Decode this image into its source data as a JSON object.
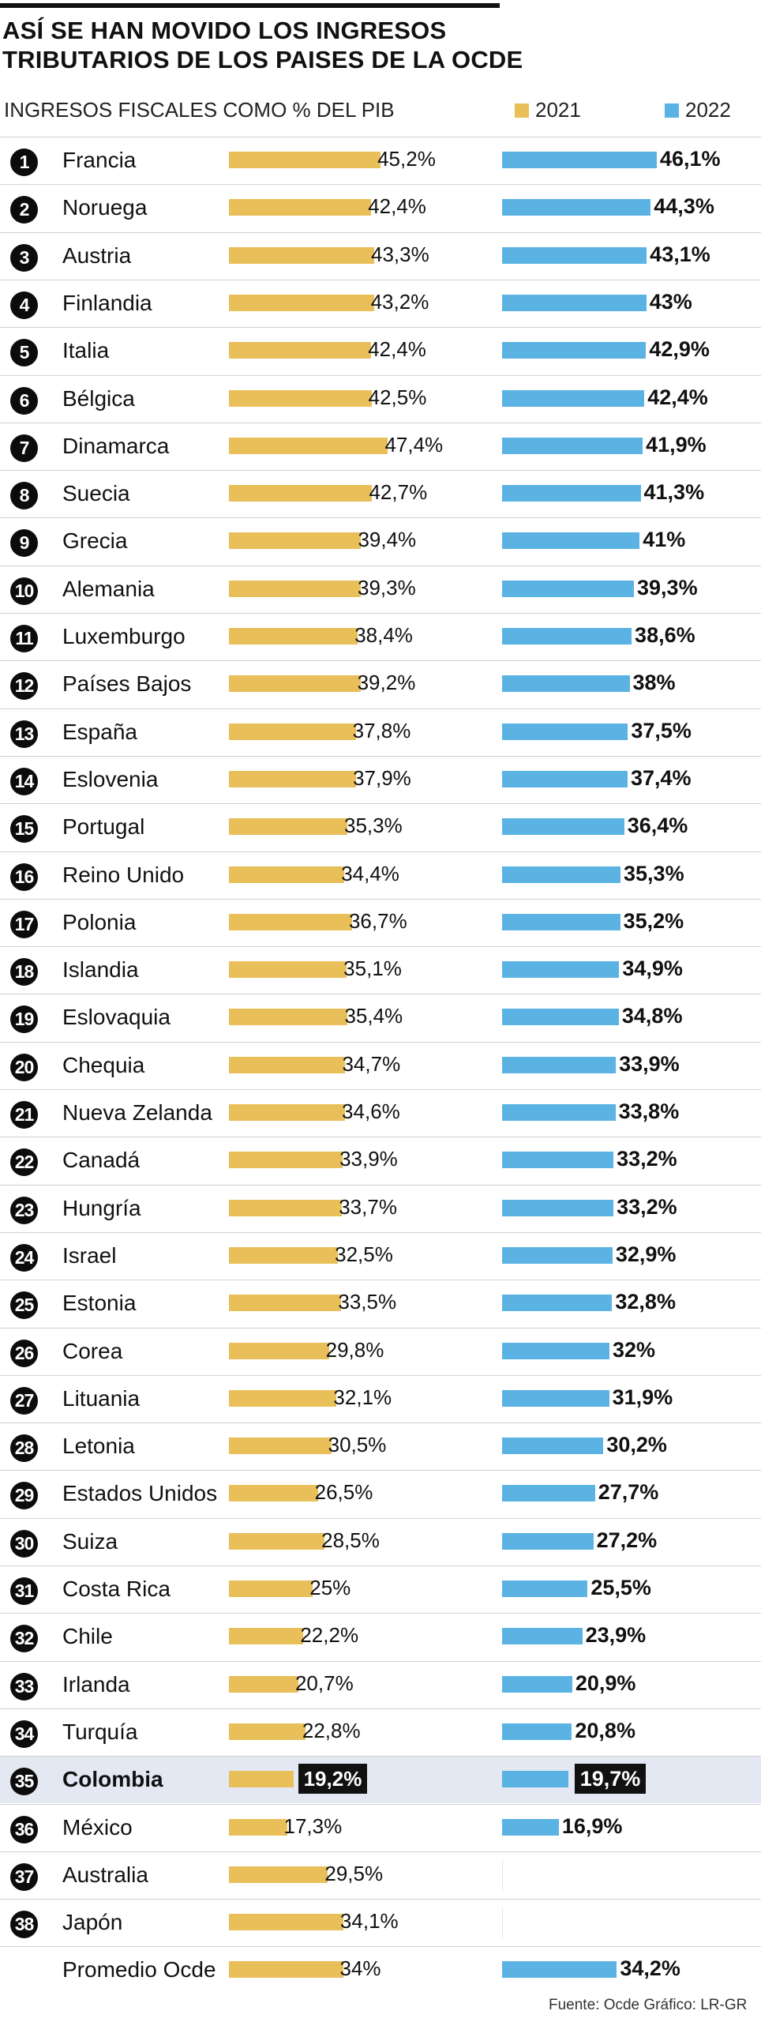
{
  "title_line1": "ASÍ SE HAN MOVIDO LOS INGRESOS",
  "title_line2": "TRIBUTARIOS DE LOS PAISES DE LA OCDE",
  "subtitle": "INGRESOS FISCALES COMO % DEL PIB",
  "source": "Fuente: Ocde   Gráfico: LR-GR",
  "colors": {
    "y2021": "#e9bf5a",
    "y2022": "#5bb3e4",
    "highlight": "#e3e8f3"
  },
  "chart_data": {
    "type": "bar",
    "orientation": "horizontal",
    "title": "ASÍ SE HAN MOVIDO LOS INGRESOS TRIBUTARIOS DE LOS PAISES DE LA OCDE",
    "ylabel": "INGRESOS FISCALES COMO % DEL PIB",
    "legend": [
      "2021",
      "2022"
    ],
    "legend_position": "top-right",
    "highlight": "Colombia",
    "rows": [
      {
        "rank": "1",
        "country": "Francia",
        "v2021": 45.2,
        "t2021": "45,2%",
        "v2022": 46.1,
        "t2022": "46,1%"
      },
      {
        "rank": "2",
        "country": "Noruega",
        "v2021": 42.4,
        "t2021": "42,4%",
        "v2022": 44.3,
        "t2022": "44,3%"
      },
      {
        "rank": "3",
        "country": "Austria",
        "v2021": 43.3,
        "t2021": "43,3%",
        "v2022": 43.1,
        "t2022": "43,1%"
      },
      {
        "rank": "4",
        "country": "Finlandia",
        "v2021": 43.2,
        "t2021": "43,2%",
        "v2022": 43,
        "t2022": "43%"
      },
      {
        "rank": "5",
        "country": "Italia",
        "v2021": 42.4,
        "t2021": "42,4%",
        "v2022": 42.9,
        "t2022": "42,9%"
      },
      {
        "rank": "6",
        "country": "Bélgica",
        "v2021": 42.5,
        "t2021": "42,5%",
        "v2022": 42.4,
        "t2022": "42,4%"
      },
      {
        "rank": "7",
        "country": "Dinamarca",
        "v2021": 47.4,
        "t2021": "47,4%",
        "v2022": 41.9,
        "t2022": "41,9%"
      },
      {
        "rank": "8",
        "country": "Suecia",
        "v2021": 42.7,
        "t2021": "42,7%",
        "v2022": 41.3,
        "t2022": "41,3%"
      },
      {
        "rank": "9",
        "country": "Grecia",
        "v2021": 39.4,
        "t2021": "39,4%",
        "v2022": 41,
        "t2022": "41%"
      },
      {
        "rank": "10",
        "country": "Alemania",
        "v2021": 39.3,
        "t2021": "39,3%",
        "v2022": 39.3,
        "t2022": "39,3%"
      },
      {
        "rank": "11",
        "country": "Luxemburgo",
        "v2021": 38.4,
        "t2021": "38,4%",
        "v2022": 38.6,
        "t2022": "38,6%"
      },
      {
        "rank": "12",
        "country": "Países Bajos",
        "v2021": 39.2,
        "t2021": "39,2%",
        "v2022": 38,
        "t2022": "38%"
      },
      {
        "rank": "13",
        "country": "España",
        "v2021": 37.8,
        "t2021": "37,8%",
        "v2022": 37.5,
        "t2022": "37,5%"
      },
      {
        "rank": "14",
        "country": "Eslovenia",
        "v2021": 37.9,
        "t2021": "37,9%",
        "v2022": 37.4,
        "t2022": "37,4%"
      },
      {
        "rank": "15",
        "country": "Portugal",
        "v2021": 35.3,
        "t2021": "35,3%",
        "v2022": 36.4,
        "t2022": "36,4%"
      },
      {
        "rank": "16",
        "country": "Reino Unido",
        "v2021": 34.4,
        "t2021": "34,4%",
        "v2022": 35.3,
        "t2022": "35,3%"
      },
      {
        "rank": "17",
        "country": "Polonia",
        "v2021": 36.7,
        "t2021": "36,7%",
        "v2022": 35.2,
        "t2022": "35,2%"
      },
      {
        "rank": "18",
        "country": "Islandia",
        "v2021": 35.1,
        "t2021": "35,1%",
        "v2022": 34.9,
        "t2022": "34,9%"
      },
      {
        "rank": "19",
        "country": "Eslovaquia",
        "v2021": 35.4,
        "t2021": "35,4%",
        "v2022": 34.8,
        "t2022": "34,8%"
      },
      {
        "rank": "20",
        "country": "Chequia",
        "v2021": 34.7,
        "t2021": "34,7%",
        "v2022": 33.9,
        "t2022": "33,9%"
      },
      {
        "rank": "21",
        "country": "Nueva Zelanda",
        "v2021": 34.6,
        "t2021": "34,6%",
        "v2022": 33.8,
        "t2022": "33,8%"
      },
      {
        "rank": "22",
        "country": "Canadá",
        "v2021": 33.9,
        "t2021": "33,9%",
        "v2022": 33.2,
        "t2022": "33,2%"
      },
      {
        "rank": "23",
        "country": "Hungría",
        "v2021": 33.7,
        "t2021": "33,7%",
        "v2022": 33.2,
        "t2022": "33,2%"
      },
      {
        "rank": "24",
        "country": "Israel",
        "v2021": 32.5,
        "t2021": "32,5%",
        "v2022": 32.9,
        "t2022": "32,9%"
      },
      {
        "rank": "25",
        "country": "Estonia",
        "v2021": 33.5,
        "t2021": "33,5%",
        "v2022": 32.8,
        "t2022": "32,8%"
      },
      {
        "rank": "26",
        "country": "Corea",
        "v2021": 29.8,
        "t2021": "29,8%",
        "v2022": 32,
        "t2022": "32%"
      },
      {
        "rank": "27",
        "country": "Lituania",
        "v2021": 32.1,
        "t2021": "32,1%",
        "v2022": 31.9,
        "t2022": "31,9%"
      },
      {
        "rank": "28",
        "country": "Letonia",
        "v2021": 30.5,
        "t2021": "30,5%",
        "v2022": 30.2,
        "t2022": "30,2%"
      },
      {
        "rank": "29",
        "country": "Estados Unidos",
        "v2021": 26.5,
        "t2021": "26,5%",
        "v2022": 27.7,
        "t2022": "27,7%"
      },
      {
        "rank": "30",
        "country": "Suiza",
        "v2021": 28.5,
        "t2021": "28,5%",
        "v2022": 27.2,
        "t2022": "27,2%"
      },
      {
        "rank": "31",
        "country": "Costa Rica",
        "v2021": 25,
        "t2021": "25%",
        "v2022": 25.5,
        "t2022": "25,5%"
      },
      {
        "rank": "32",
        "country": "Chile",
        "v2021": 22.2,
        "t2021": "22,2%",
        "v2022": 23.9,
        "t2022": "23,9%"
      },
      {
        "rank": "33",
        "country": "Irlanda",
        "v2021": 20.7,
        "t2021": "20,7%",
        "v2022": 20.9,
        "t2022": "20,9%"
      },
      {
        "rank": "34",
        "country": "Turquía",
        "v2021": 22.8,
        "t2021": "22,8%",
        "v2022": 20.8,
        "t2022": "20,8%"
      },
      {
        "rank": "35",
        "country": "Colombia",
        "v2021": 19.2,
        "t2021": "19,2%",
        "v2022": 19.7,
        "t2022": "19,7%"
      },
      {
        "rank": "36",
        "country": "México",
        "v2021": 17.3,
        "t2021": "17,3%",
        "v2022": 16.9,
        "t2022": "16,9%"
      },
      {
        "rank": "37",
        "country": "Australia",
        "v2021": 29.5,
        "t2021": "29,5%",
        "v2022": null,
        "t2022": null
      },
      {
        "rank": "38",
        "country": "Japón",
        "v2021": 34.1,
        "t2021": "34,1%",
        "v2022": null,
        "t2022": null
      },
      {
        "rank": null,
        "country": "Promedio Ocde",
        "v2021": 34,
        "t2021": "34%",
        "v2022": 34.2,
        "t2022": "34,2%"
      }
    ]
  },
  "legend_labels": {
    "y2021": "2021",
    "y2022": "2022"
  }
}
